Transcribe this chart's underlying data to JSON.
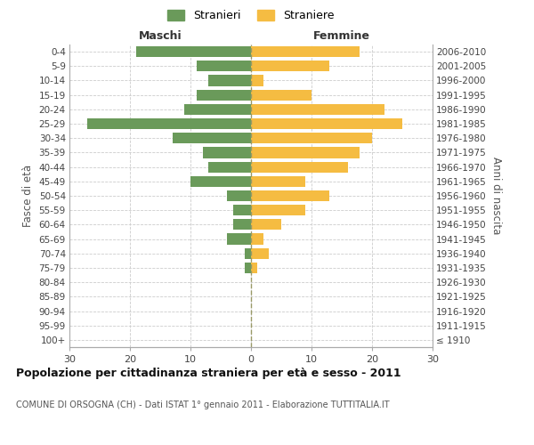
{
  "age_groups": [
    "100+",
    "95-99",
    "90-94",
    "85-89",
    "80-84",
    "75-79",
    "70-74",
    "65-69",
    "60-64",
    "55-59",
    "50-54",
    "45-49",
    "40-44",
    "35-39",
    "30-34",
    "25-29",
    "20-24",
    "15-19",
    "10-14",
    "5-9",
    "0-4"
  ],
  "birth_years": [
    "≤ 1910",
    "1911-1915",
    "1916-1920",
    "1921-1925",
    "1926-1930",
    "1931-1935",
    "1936-1940",
    "1941-1945",
    "1946-1950",
    "1951-1955",
    "1956-1960",
    "1961-1965",
    "1966-1970",
    "1971-1975",
    "1976-1980",
    "1981-1985",
    "1986-1990",
    "1991-1995",
    "1996-2000",
    "2001-2005",
    "2006-2010"
  ],
  "maschi": [
    0,
    0,
    0,
    0,
    0,
    1,
    1,
    4,
    3,
    3,
    4,
    10,
    7,
    8,
    13,
    27,
    11,
    9,
    7,
    9,
    19
  ],
  "femmine": [
    0,
    0,
    0,
    0,
    0,
    1,
    3,
    2,
    5,
    9,
    13,
    9,
    16,
    18,
    20,
    25,
    22,
    10,
    2,
    13,
    18
  ],
  "color_maschi": "#6a9a5a",
  "color_femmine": "#f5bc42",
  "title": "Popolazione per cittadinanza straniera per età e sesso - 2011",
  "subtitle": "COMUNE DI ORSOGNA (CH) - Dati ISTAT 1° gennaio 2011 - Elaborazione TUTTITALIA.IT",
  "ylabel_left": "Fasce di età",
  "ylabel_right": "Anni di nascita",
  "xlabel_left": "Maschi",
  "xlabel_right": "Femmine",
  "legend_maschi": "Stranieri",
  "legend_femmine": "Straniere",
  "xlim": 30,
  "background_color": "#ffffff",
  "grid_color": "#cccccc"
}
